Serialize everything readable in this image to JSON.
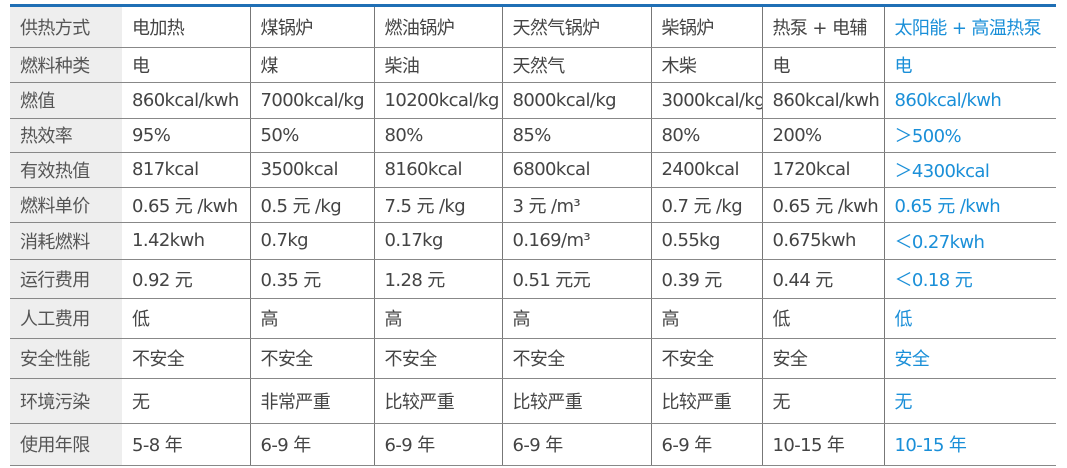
{
  "colors": {
    "accent": "#1a8fd8",
    "top_border": "#1f6fb5",
    "label_bg": "#eeeeee"
  },
  "rows": [
    {
      "label": "供热方式",
      "cells": [
        "电加热",
        "煤锅炉",
        "燃油锅炉",
        "天然气锅炉",
        "柴锅炉",
        "热泵 + 电辅",
        "太阳能 + 高温热泵"
      ]
    },
    {
      "label": "燃料种类",
      "cells": [
        "电",
        "煤",
        "柴油",
        "天然气",
        "木柴",
        "电",
        "电"
      ]
    },
    {
      "label": "燃值",
      "cells": [
        "860kcal/kwh",
        "7000kcal/kg",
        "10200kcal/kg",
        "8000kcal/kg",
        "3000kcal/kg",
        "860kcal/kwh",
        "860kcal/kwh"
      ]
    },
    {
      "label": "热效率",
      "cells": [
        "95%",
        "50%",
        "80%",
        "85%",
        "80%",
        "200%",
        "＞500%"
      ]
    },
    {
      "label": "有效热值",
      "cells": [
        "817kcal",
        "3500kcal",
        "8160kcal",
        "6800kcal",
        "2400kcal",
        "1720kcal",
        "＞4300kcal"
      ]
    },
    {
      "label": "燃料单价",
      "cells": [
        "0.65 元 /kwh",
        "0.5 元 /kg",
        "7.5 元 /kg",
        "3 元 /m³",
        "0.7 元 /kg",
        "0.65 元 /kwh",
        "0.65 元 /kwh"
      ]
    },
    {
      "label": "消耗燃料",
      "cells": [
        "1.42kwh",
        "0.7kg",
        "0.17kg",
        "0.169/m³",
        "0.55kg",
        "0.675kwh",
        "＜0.27kwh"
      ]
    },
    {
      "label": "运行费用",
      "cells": [
        "0.92 元",
        "0.35 元",
        "1.28 元",
        "0.51 元元",
        "0.39 元",
        "0.44 元",
        "＜0.18 元"
      ]
    },
    {
      "label": "人工费用",
      "cells": [
        "低",
        "高",
        "高",
        "高",
        "高",
        "低",
        "低"
      ]
    },
    {
      "label": "安全性能",
      "cells": [
        "不安全",
        "不安全",
        "不安全",
        "不安全",
        "不安全",
        "安全",
        "安全"
      ]
    },
    {
      "label": "环境污染",
      "cells": [
        "无",
        "非常严重",
        "比较严重",
        "比较严重",
        "比较严重",
        "无",
        "无"
      ]
    },
    {
      "label": "使用年限",
      "cells": [
        "5-8 年",
        "6-9 年",
        "6-9 年",
        "6-9 年",
        "6-9 年",
        "10-15 年",
        "10-15 年"
      ]
    }
  ]
}
